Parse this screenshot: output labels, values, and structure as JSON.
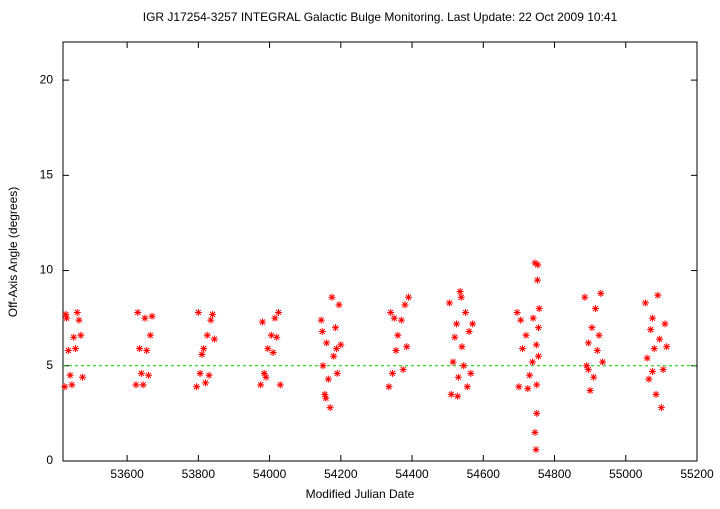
{
  "chart_data": {
    "type": "scatter",
    "title": "IGR J17254-3257   INTEGRAL Galactic Bulge Monitoring.  Last Update: 22 Oct 2009 10:41",
    "x_label": "Modified Julian Date",
    "y_label": "Off-Axis Angle (degrees)",
    "xlim": [
      53420,
      55200
    ],
    "xticks": [
      53600,
      53800,
      54000,
      54200,
      54400,
      54600,
      54800,
      55000,
      55200
    ],
    "ylim": [
      0,
      22
    ],
    "yticks": [
      0,
      5,
      10,
      15,
      20
    ],
    "color": "#ff0000",
    "reference_line": 5,
    "reference_color": "#00cc00",
    "x": [
      53425,
      53440,
      53455,
      53470,
      53430,
      53460,
      53445,
      53465,
      53435,
      53475,
      53450,
      53428,
      53625,
      53640,
      53655,
      53665,
      53630,
      53650,
      53660,
      53635,
      53670,
      53645,
      53795,
      53805,
      53815,
      53825,
      53835,
      53800,
      53820,
      53810,
      53840,
      53830,
      53845,
      53975,
      53985,
      53995,
      54005,
      54015,
      54025,
      53990,
      54010,
      54030,
      53980,
      54020,
      54145,
      54150,
      54155,
      54160,
      54165,
      54170,
      54175,
      54180,
      54185,
      54190,
      54195,
      54200,
      54158,
      54188,
      54148,
      54335,
      54345,
      54355,
      54360,
      54340,
      54370,
      54380,
      54390,
      54385,
      54375,
      54350,
      54505,
      54510,
      54515,
      54520,
      54525,
      54530,
      54535,
      54540,
      54545,
      54550,
      54555,
      54560,
      54565,
      54570,
      54528,
      54538,
      54695,
      54700,
      54710,
      54720,
      54730,
      54740,
      54745,
      54748,
      54750,
      54752,
      54755,
      54757,
      54750,
      54753,
      54745,
      54755,
      54738,
      54725,
      54705,
      54749,
      54885,
      54890,
      54895,
      54900,
      54905,
      54910,
      54915,
      54920,
      54925,
      54930,
      54935,
      54895,
      55055,
      55060,
      55065,
      55070,
      55075,
      55080,
      55085,
      55090,
      55095,
      55100,
      55105,
      55110,
      55115,
      55075
    ],
    "values": [
      3.9,
      4.5,
      5.9,
      6.6,
      7.5,
      7.8,
      4.0,
      7.4,
      5.8,
      4.4,
      6.5,
      7.7,
      4.0,
      4.6,
      5.8,
      6.6,
      7.8,
      7.5,
      4.5,
      5.9,
      7.6,
      4.0,
      3.9,
      4.6,
      5.9,
      6.6,
      7.4,
      7.8,
      4.1,
      5.6,
      7.7,
      4.5,
      6.4,
      4.0,
      4.6,
      5.9,
      6.6,
      7.5,
      7.8,
      4.4,
      5.7,
      4.0,
      7.3,
      6.5,
      7.4,
      5.0,
      3.5,
      6.2,
      4.3,
      2.8,
      8.6,
      5.5,
      7.0,
      4.6,
      8.2,
      6.1,
      3.3,
      5.9,
      6.8,
      3.9,
      4.6,
      5.8,
      6.6,
      7.8,
      7.4,
      8.2,
      8.6,
      6.0,
      4.8,
      7.5,
      8.3,
      3.5,
      5.2,
      6.5,
      7.2,
      4.4,
      8.9,
      6.0,
      5.0,
      7.8,
      3.9,
      6.8,
      4.6,
      7.2,
      3.4,
      8.6,
      7.8,
      3.9,
      5.9,
      6.6,
      4.5,
      7.5,
      10.4,
      0.6,
      2.5,
      9.5,
      5.5,
      8.0,
      4.0,
      10.3,
      1.5,
      7.0,
      5.2,
      3.8,
      7.4,
      6.1,
      8.6,
      5.0,
      6.2,
      3.7,
      7.0,
      4.4,
      8.0,
      5.8,
      6.6,
      8.8,
      5.2,
      4.8,
      8.3,
      5.4,
      4.3,
      6.9,
      7.5,
      5.9,
      3.5,
      8.7,
      6.4,
      2.8,
      4.8,
      7.2,
      6.0,
      4.7
    ]
  }
}
